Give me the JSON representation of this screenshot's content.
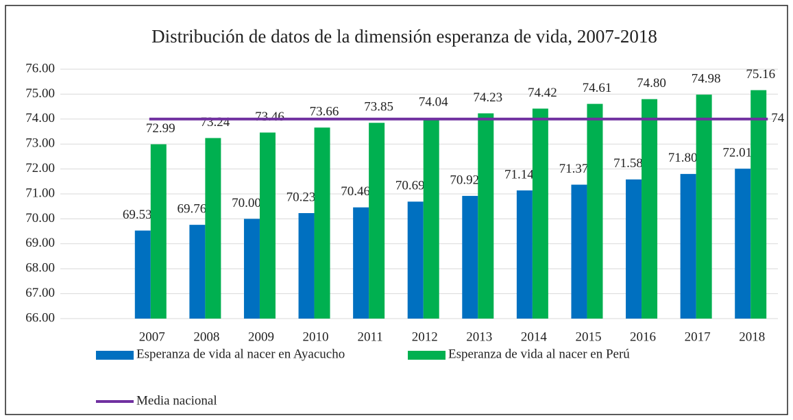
{
  "chart_data": {
    "type": "bar",
    "title": "Distribución de datos de la dimensión esperanza de vida, 2007-2018",
    "categories": [
      "2007",
      "2008",
      "2009",
      "2010",
      "2011",
      "2012",
      "2013",
      "2014",
      "2015",
      "2016",
      "2017",
      "2018"
    ],
    "series": [
      {
        "name": "Esperanza de vida al nacer en Ayacucho",
        "type": "bar",
        "color": "#0070c0",
        "values": [
          69.53,
          69.76,
          70.0,
          70.23,
          70.46,
          70.69,
          70.92,
          71.14,
          71.37,
          71.58,
          71.8,
          72.01
        ],
        "value_labels": [
          "69.53",
          "69.76",
          "70.00",
          "70.23",
          "70.46",
          "70.69",
          "70.92",
          "71.14",
          "71.37",
          "71.58",
          "71.80",
          "72.01"
        ]
      },
      {
        "name": "Esperanza de vida al nacer en Perú",
        "type": "bar",
        "color": "#00b050",
        "values": [
          72.99,
          73.24,
          73.46,
          73.66,
          73.85,
          74.04,
          74.23,
          74.42,
          74.61,
          74.8,
          74.98,
          75.16
        ],
        "value_labels": [
          "72.99",
          "73.24",
          "73.46",
          "73.66",
          "73.85",
          "74.04",
          "74.23",
          "74.42",
          "74.61",
          "74.80",
          "74.98",
          "75.16"
        ]
      },
      {
        "name": "Media nacional",
        "type": "line",
        "color": "#7030a0",
        "label_color": "#ff0000",
        "values": [
          74,
          74,
          74,
          74,
          74,
          74,
          74,
          74,
          74,
          74,
          74,
          74
        ]
      }
    ],
    "ylim": [
      66,
      76
    ],
    "yticks": [
      {
        "value": 66,
        "label": "66.00"
      },
      {
        "value": 67,
        "label": "67.00"
      },
      {
        "value": 68,
        "label": "68.00"
      },
      {
        "value": 69,
        "label": "69.00"
      },
      {
        "value": 70,
        "label": "70.00"
      },
      {
        "value": 71,
        "label": "71.00"
      },
      {
        "value": 72,
        "label": "72.00"
      },
      {
        "value": 73,
        "label": "73.00"
      },
      {
        "value": 74,
        "label": "74.00"
      },
      {
        "value": 75,
        "label": "75.00"
      },
      {
        "value": 76,
        "label": "76.00"
      }
    ],
    "grid": true,
    "legend": "bottom"
  }
}
